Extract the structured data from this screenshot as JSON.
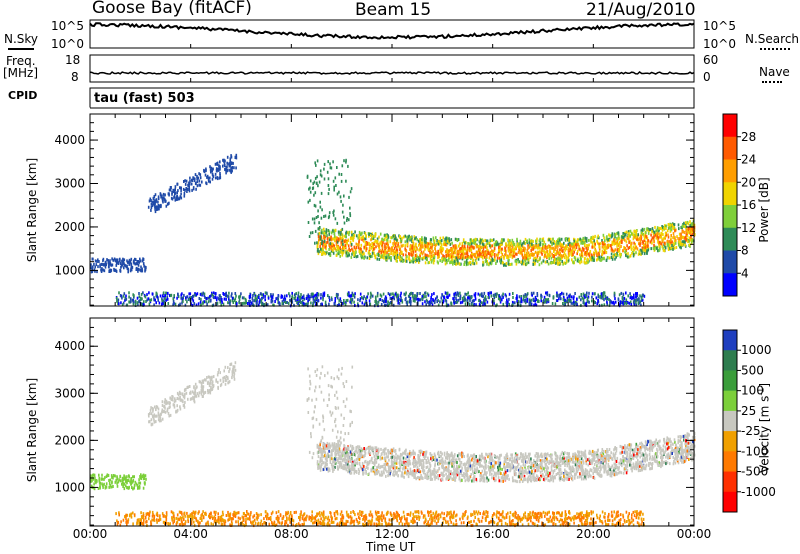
{
  "header": {
    "station": "Goose Bay (fitACF)",
    "beam": "Beam 15",
    "date": "21/Aug/2010"
  },
  "summary": {
    "nsky_label": "N.Sky",
    "nsearch_label": "N.Search",
    "nsky_ticks": [
      "10^5",
      "10^0"
    ],
    "nsky_right_ticks": [
      "10^5",
      "10^0"
    ],
    "freq_label_1": "Freq.",
    "freq_label_2": "[MHz]",
    "freq_ticks": [
      "18",
      "8"
    ],
    "nave_label": "Nave",
    "nave_ticks": [
      "60",
      "0"
    ],
    "cpid_label": "CPID",
    "cpid_value": "tau (fast) 503"
  },
  "chart_data": [
    {
      "type": "heatmap",
      "name": "power-panel",
      "ylabel": "Slant Range [km]",
      "xlabel": "Time UT",
      "x_ticks": [
        "00:00",
        "04:00",
        "08:00",
        "12:00",
        "16:00",
        "20:00",
        "00:00"
      ],
      "x_range_hours": [
        0,
        24
      ],
      "y_ticks": [
        1000,
        2000,
        3000,
        4000
      ],
      "y_range_km": [
        180,
        4600
      ],
      "colorbar": {
        "label": "Power [dB]",
        "ticks": [
          "28",
          "24",
          "20",
          "16",
          "12",
          "8",
          "4"
        ],
        "colors": [
          "#ff0000",
          "#ff5a00",
          "#ff9e00",
          "#f0d400",
          "#7fcf3a",
          "#2e8b57",
          "#1f4aa8",
          "#0000ff"
        ]
      }
    },
    {
      "type": "heatmap",
      "name": "velocity-panel",
      "ylabel": "Slant Range [km]",
      "xlabel": "Time UT",
      "x_ticks": [
        "00:00",
        "04:00",
        "08:00",
        "12:00",
        "16:00",
        "20:00",
        "00:00"
      ],
      "x_range_hours": [
        0,
        24
      ],
      "y_ticks": [
        1000,
        2000,
        3000,
        4000
      ],
      "y_range_km": [
        180,
        4600
      ],
      "colorbar": {
        "label": "Velocity [m s-1]",
        "ticks": [
          "1000",
          "500",
          "100",
          "25",
          "-25",
          "-100",
          "-500",
          "-1000"
        ],
        "colors": [
          "#1f3fbf",
          "#2e7d4f",
          "#3a9d3a",
          "#7ccf3a",
          "#c8c8c0",
          "#f0a000",
          "#ff7a00",
          "#ff3000",
          "#ff0000"
        ]
      }
    }
  ],
  "axis": {
    "xlabel": "Time UT",
    "ylabel": "Slant Range [km]",
    "power_label": "Power [dB]",
    "velocity_label": "Velocity",
    "velocity_unit": "[m s",
    "velocity_unit_exp": "-1",
    "velocity_unit_close": "]"
  }
}
